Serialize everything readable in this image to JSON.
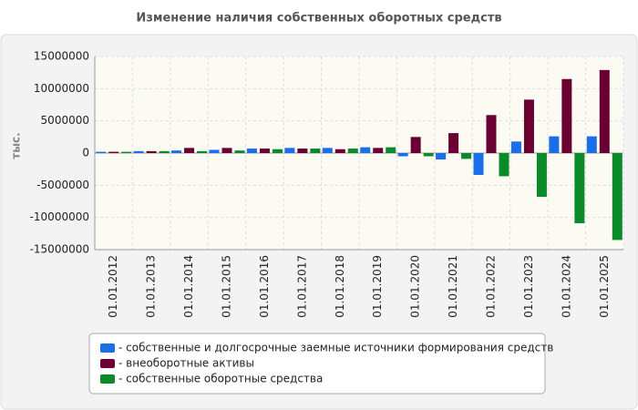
{
  "chart_data": {
    "type": "bar",
    "title": "Изменение наличия собственных оборотных средств",
    "y_label": "тыс.",
    "categories": [
      "01.01.2012",
      "01.01.2013",
      "01.01.2014",
      "01.01.2015",
      "01.01.2016",
      "01.01.2017",
      "01.01.2018",
      "01.01.2019",
      "01.01.2020",
      "01.01.2021",
      "01.01.2022",
      "01.01.2023",
      "01.01.2024",
      "01.01.2025"
    ],
    "series": [
      {
        "name": "- собственные и долгосрочные заемные источники формирования средств",
        "color": "#1a6fe8",
        "values": [
          200000,
          300000,
          400000,
          500000,
          700000,
          800000,
          800000,
          900000,
          -500000,
          -1000000,
          -3400000,
          1800000,
          2600000,
          2600000
        ]
      },
      {
        "name": "- внеоборотные активы",
        "color": "#6b0033",
        "values": [
          200000,
          300000,
          800000,
          800000,
          700000,
          700000,
          600000,
          800000,
          2500000,
          3100000,
          5900000,
          8300000,
          11500000,
          12900000
        ]
      },
      {
        "name": "- собственные оборотные средства",
        "color": "#0b8a2a",
        "values": [
          200000,
          300000,
          300000,
          400000,
          600000,
          700000,
          700000,
          900000,
          -500000,
          -900000,
          -3600000,
          -6800000,
          -10900000,
          -13500000
        ]
      }
    ],
    "ylim": [
      -15000000,
      15000000
    ],
    "yticks": [
      -15000000,
      -10000000,
      -5000000,
      0,
      5000000,
      10000000,
      15000000
    ],
    "grid": true
  }
}
